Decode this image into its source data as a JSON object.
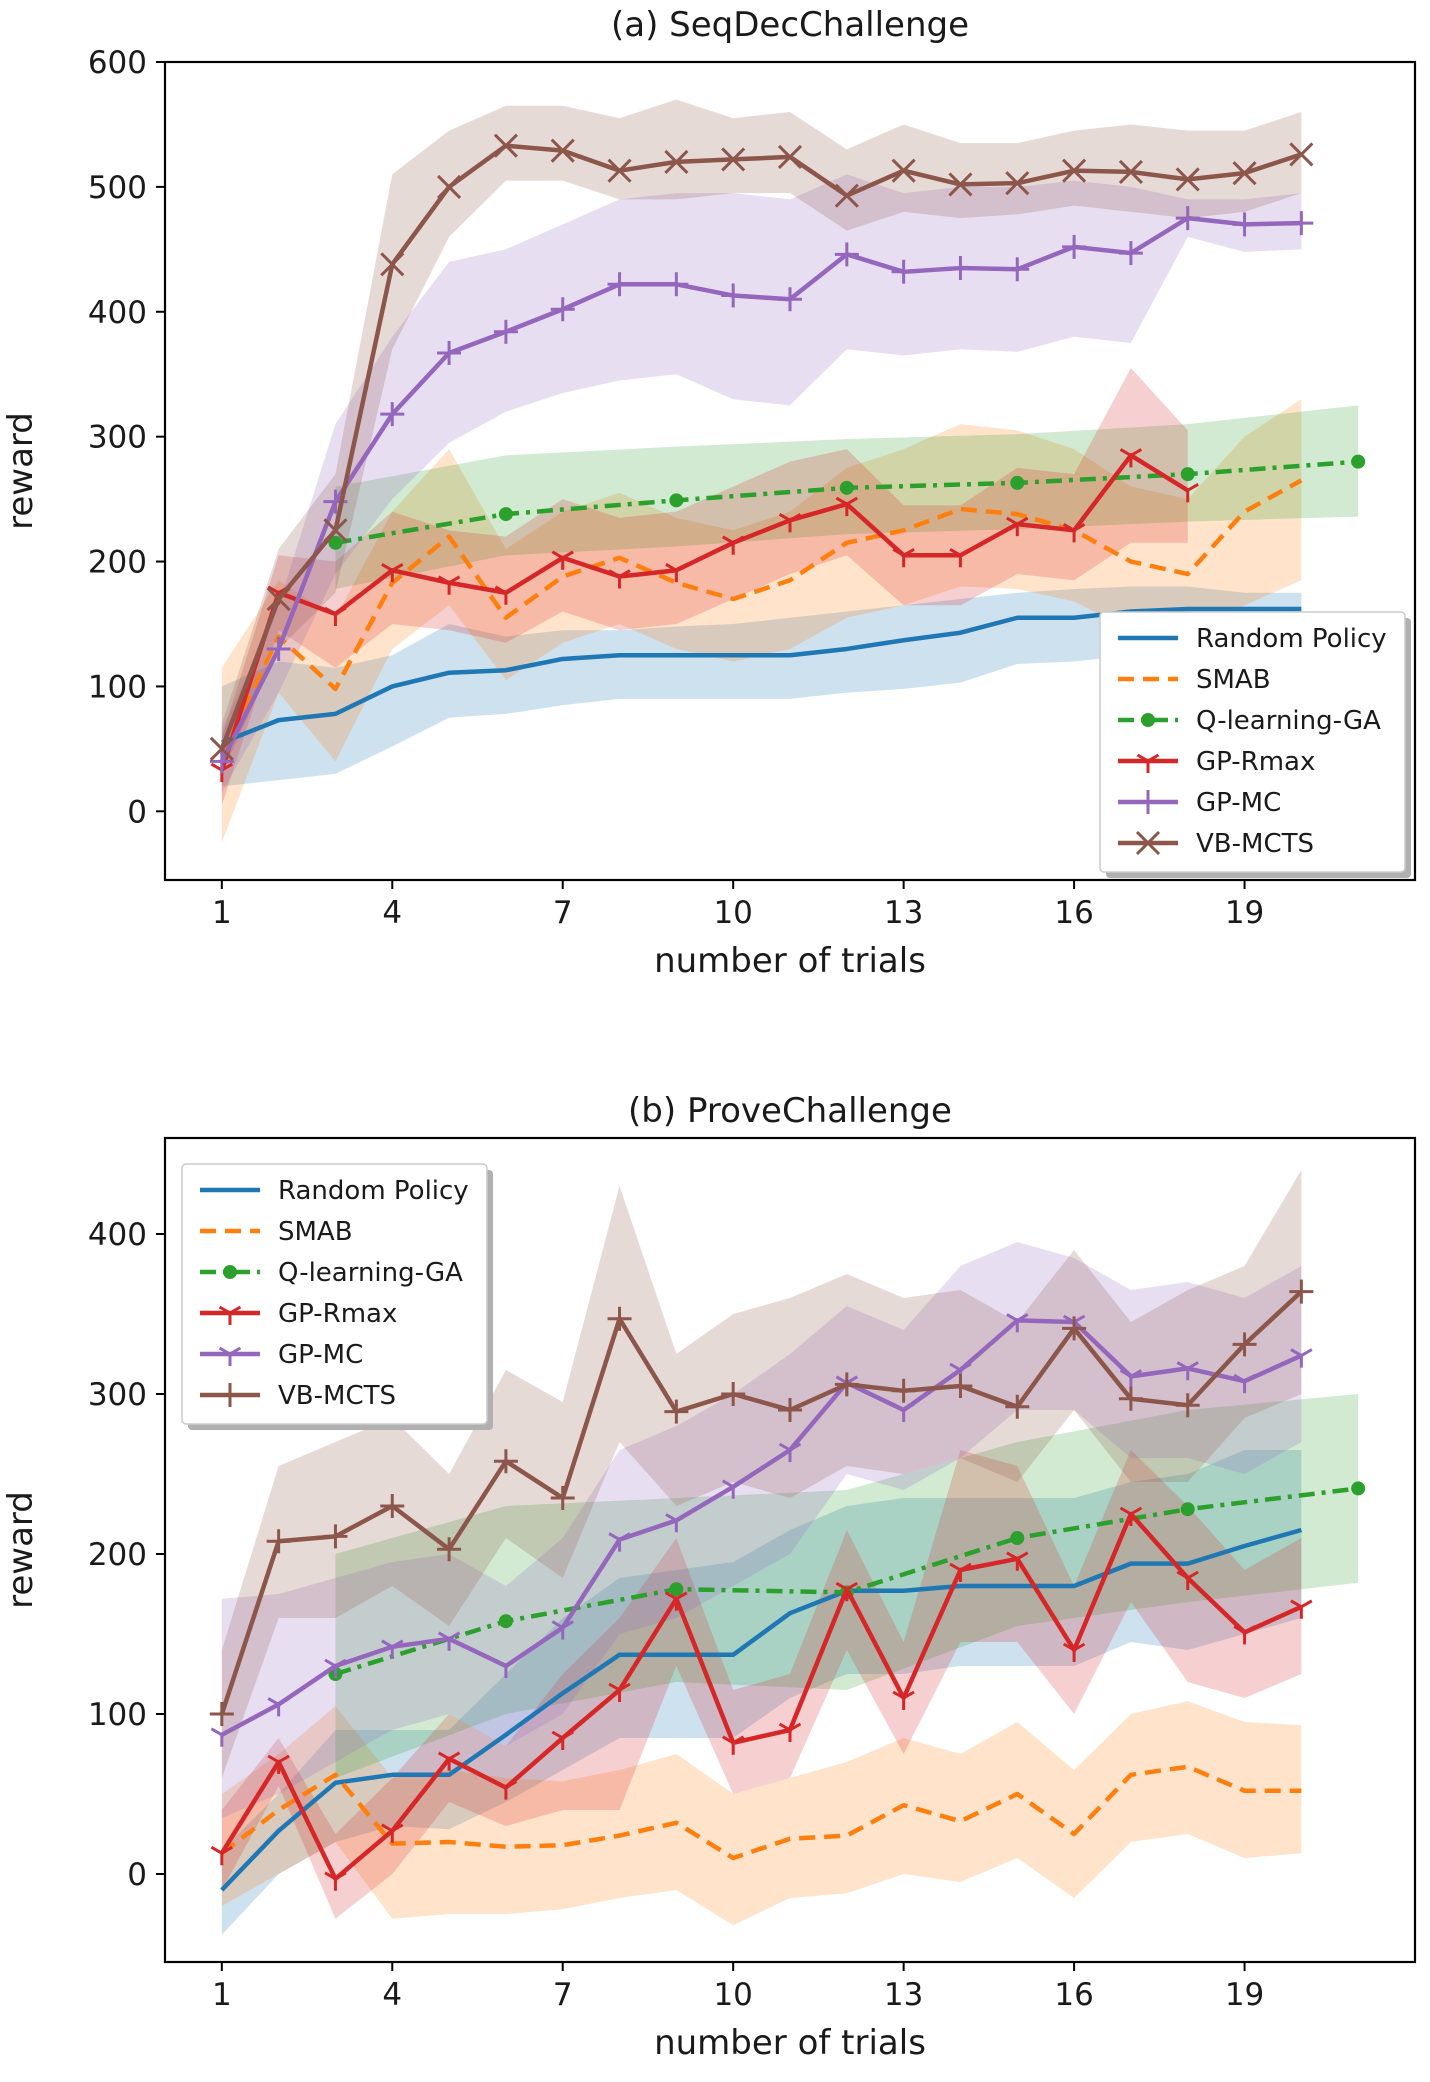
{
  "chart_data": [
    {
      "type": "line",
      "title": "(a) SeqDecChallenge",
      "xlabel": "number of trials",
      "ylabel": "reward",
      "xlim": [
        0,
        22
      ],
      "ylim": [
        -55,
        600
      ],
      "xticks": [
        1,
        4,
        7,
        10,
        13,
        16,
        19
      ],
      "yticks": [
        0,
        100,
        200,
        300,
        400,
        500,
        600
      ],
      "grid": false,
      "legend": "bottom-right",
      "series": [
        {
          "name": "Random Policy",
          "color": "#1f77b4",
          "dash": "solid",
          "marker": "none",
          "x": [
            1,
            2,
            3,
            4,
            5,
            6,
            7,
            8,
            9,
            10,
            11,
            12,
            13,
            14,
            15,
            16,
            17,
            18,
            19,
            20
          ],
          "y": [
            55,
            73,
            78,
            100,
            111,
            113,
            122,
            125,
            125,
            125,
            125,
            130,
            137,
            143,
            155,
            155,
            160,
            162,
            162,
            162
          ],
          "lower": [
            20,
            25,
            30,
            52,
            75,
            78,
            85,
            90,
            90,
            90,
            90,
            95,
            98,
            103,
            118,
            120,
            125,
            128,
            130,
            130
          ],
          "upper": [
            100,
            120,
            115,
            125,
            150,
            140,
            145,
            145,
            148,
            150,
            155,
            160,
            165,
            170,
            175,
            178,
            180,
            180,
            175,
            175
          ]
        },
        {
          "name": "SMAB",
          "color": "#ff7f0e",
          "dash": "dashed",
          "marker": "none",
          "x": [
            1,
            2,
            3,
            4,
            5,
            6,
            7,
            8,
            9,
            10,
            11,
            12,
            13,
            14,
            15,
            16,
            17,
            18,
            19,
            20
          ],
          "y": [
            45,
            140,
            98,
            183,
            220,
            155,
            188,
            203,
            183,
            170,
            185,
            215,
            225,
            242,
            238,
            225,
            200,
            190,
            240,
            265
          ],
          "lower": [
            -25,
            95,
            40,
            130,
            165,
            105,
            135,
            150,
            130,
            120,
            130,
            155,
            165,
            180,
            178,
            168,
            145,
            140,
            165,
            185
          ],
          "upper": [
            115,
            185,
            155,
            240,
            290,
            210,
            240,
            255,
            235,
            225,
            240,
            275,
            290,
            310,
            305,
            290,
            260,
            250,
            300,
            330
          ]
        },
        {
          "name": "Q-learning-GA",
          "color": "#2ca02c",
          "dash": "dashdot",
          "marker": "dot",
          "x": [
            3,
            6,
            9,
            12,
            15,
            18,
            21
          ],
          "y": [
            215,
            238,
            249,
            259,
            263,
            270,
            280
          ],
          "lower": [
            178,
            205,
            212,
            222,
            226,
            232,
            236
          ],
          "upper": [
            260,
            285,
            292,
            298,
            302,
            310,
            325
          ]
        },
        {
          "name": "GP-Rmax",
          "color": "#d62728",
          "dash": "solid",
          "marker": "tri_down",
          "x": [
            1,
            2,
            3,
            4,
            5,
            6,
            7,
            8,
            9,
            10,
            11,
            12,
            13,
            14,
            15,
            16,
            17,
            18
          ],
          "y": [
            33,
            175,
            158,
            193,
            183,
            175,
            203,
            188,
            193,
            215,
            233,
            246,
            205,
            205,
            230,
            225,
            285,
            257
          ],
          "lower": [
            5,
            145,
            115,
            150,
            145,
            135,
            160,
            145,
            150,
            170,
            190,
            205,
            165,
            165,
            190,
            185,
            215,
            215
          ],
          "upper": [
            60,
            205,
            200,
            240,
            225,
            220,
            250,
            235,
            240,
            260,
            280,
            290,
            245,
            245,
            275,
            270,
            355,
            305
          ]
        },
        {
          "name": "GP-MC",
          "color": "#9467bd",
          "dash": "solid",
          "marker": "plus",
          "x": [
            1,
            2,
            3,
            4,
            5,
            6,
            7,
            8,
            9,
            10,
            11,
            12,
            13,
            14,
            15,
            16,
            17,
            18,
            19,
            20
          ],
          "y": [
            40,
            130,
            248,
            318,
            367,
            384,
            402,
            422,
            422,
            413,
            410,
            446,
            432,
            435,
            434,
            452,
            447,
            475,
            470,
            471
          ],
          "lower": [
            15,
            95,
            190,
            250,
            295,
            320,
            335,
            345,
            350,
            330,
            325,
            370,
            365,
            370,
            368,
            380,
            375,
            460,
            448,
            450
          ],
          "upper": [
            65,
            165,
            310,
            380,
            440,
            450,
            470,
            490,
            495,
            495,
            490,
            510,
            495,
            500,
            500,
            505,
            500,
            490,
            490,
            495
          ]
        },
        {
          "name": "VB-MCTS",
          "color": "#8c564b",
          "dash": "solid",
          "marker": "x",
          "x": [
            1,
            2,
            3,
            4,
            5,
            6,
            7,
            8,
            9,
            10,
            11,
            12,
            13,
            14,
            15,
            16,
            17,
            18,
            19,
            20
          ],
          "y": [
            50,
            170,
            225,
            438,
            500,
            533,
            529,
            513,
            520,
            522,
            524,
            493,
            513,
            502,
            503,
            513,
            512,
            506,
            511,
            526
          ],
          "lower": [
            30,
            130,
            175,
            370,
            460,
            505,
            505,
            490,
            490,
            495,
            495,
            465,
            480,
            475,
            478,
            485,
            480,
            475,
            480,
            495
          ],
          "upper": [
            70,
            210,
            270,
            510,
            545,
            565,
            565,
            555,
            570,
            555,
            560,
            530,
            550,
            535,
            535,
            545,
            550,
            545,
            545,
            560
          ]
        }
      ]
    },
    {
      "type": "line",
      "title": "(b) ProveChallenge",
      "xlabel": "number of trials",
      "ylabel": "reward",
      "xlim": [
        0,
        22
      ],
      "ylim": [
        -55,
        460
      ],
      "xticks": [
        1,
        4,
        7,
        10,
        13,
        16,
        19
      ],
      "yticks": [
        0,
        100,
        200,
        300,
        400
      ],
      "grid": false,
      "legend": "top-left",
      "series": [
        {
          "name": "Random Policy",
          "color": "#1f77b4",
          "dash": "solid",
          "marker": "none",
          "x": [
            1,
            2,
            3,
            4,
            5,
            6,
            7,
            8,
            9,
            10,
            11,
            12,
            13,
            14,
            15,
            16,
            17,
            18,
            19,
            20
          ],
          "y": [
            -10,
            27,
            57,
            62,
            62,
            87,
            113,
            137,
            137,
            137,
            163,
            177,
            177,
            180,
            180,
            180,
            194,
            194,
            205,
            215
          ],
          "lower": [
            -38,
            0,
            20,
            30,
            28,
            45,
            65,
            85,
            85,
            85,
            110,
            125,
            125,
            130,
            130,
            130,
            145,
            140,
            150,
            160
          ],
          "upper": [
            15,
            50,
            90,
            90,
            90,
            125,
            160,
            185,
            190,
            195,
            215,
            230,
            235,
            235,
            235,
            235,
            245,
            250,
            265,
            265
          ]
        },
        {
          "name": "SMAB",
          "color": "#ff7f0e",
          "dash": "dashed",
          "marker": "none",
          "x": [
            1,
            2,
            3,
            4,
            5,
            6,
            7,
            8,
            9,
            10,
            11,
            12,
            13,
            14,
            15,
            16,
            17,
            18,
            19,
            20
          ],
          "y": [
            13,
            40,
            62,
            19,
            20,
            17,
            18,
            24,
            32,
            10,
            22,
            24,
            43,
            33,
            50,
            25,
            62,
            67,
            52,
            52
          ],
          "lower": [
            -20,
            0,
            20,
            -28,
            -25,
            -25,
            -22,
            -15,
            -10,
            -32,
            -15,
            -12,
            0,
            -5,
            10,
            -15,
            20,
            25,
            10,
            13
          ],
          "upper": [
            50,
            75,
            105,
            60,
            65,
            60,
            58,
            65,
            75,
            50,
            60,
            70,
            85,
            75,
            95,
            65,
            100,
            108,
            95,
            93
          ]
        },
        {
          "name": "Q-learning-GA",
          "color": "#2ca02c",
          "dash": "dashdot",
          "marker": "dot",
          "x": [
            3,
            6,
            9,
            12,
            15,
            18,
            21
          ],
          "y": [
            125,
            158,
            178,
            176,
            210,
            228,
            241
          ],
          "lower": [
            60,
            100,
            120,
            115,
            155,
            170,
            182
          ],
          "upper": [
            200,
            230,
            235,
            240,
            270,
            290,
            300
          ]
        },
        {
          "name": "GP-Rmax",
          "color": "#d62728",
          "dash": "solid",
          "marker": "tri_down",
          "x": [
            1,
            2,
            3,
            4,
            5,
            6,
            7,
            8,
            9,
            10,
            11,
            12,
            13,
            14,
            15,
            16,
            17,
            18,
            19,
            20
          ],
          "y": [
            13,
            70,
            -3,
            27,
            72,
            54,
            85,
            115,
            172,
            82,
            90,
            178,
            110,
            190,
            197,
            140,
            225,
            185,
            151,
            167
          ],
          "lower": [
            -10,
            55,
            -28,
            0,
            45,
            30,
            40,
            40,
            130,
            50,
            60,
            140,
            75,
            145,
            145,
            100,
            170,
            120,
            110,
            125
          ],
          "upper": [
            40,
            85,
            25,
            60,
            100,
            80,
            125,
            160,
            210,
            115,
            125,
            215,
            145,
            265,
            255,
            180,
            265,
            230,
            190,
            210
          ]
        },
        {
          "name": "GP-MC",
          "color": "#9467bd",
          "dash": "solid",
          "marker": "tri_down",
          "x": [
            1,
            2,
            3,
            4,
            5,
            6,
            7,
            8,
            9,
            10,
            11,
            12,
            13,
            14,
            15,
            16,
            17,
            18,
            19,
            20
          ],
          "y": [
            87,
            106,
            130,
            142,
            147,
            130,
            154,
            209,
            221,
            242,
            265,
            307,
            290,
            315,
            346,
            345,
            311,
            316,
            308,
            324
          ],
          "lower": [
            35,
            50,
            70,
            90,
            100,
            80,
            100,
            150,
            160,
            180,
            200,
            250,
            240,
            260,
            290,
            290,
            260,
            260,
            250,
            270
          ],
          "upper": [
            172,
            175,
            185,
            195,
            200,
            180,
            210,
            265,
            280,
            300,
            325,
            355,
            340,
            380,
            395,
            385,
            365,
            370,
            360,
            380
          ]
        },
        {
          "name": "VB-MCTS",
          "color": "#8c564b",
          "dash": "solid",
          "marker": "plus",
          "x": [
            1,
            2,
            3,
            4,
            5,
            6,
            7,
            8,
            9,
            10,
            11,
            12,
            13,
            14,
            15,
            16,
            17,
            18,
            19,
            20
          ],
          "y": [
            100,
            208,
            211,
            230,
            203,
            258,
            235,
            347,
            289,
            300,
            290,
            306,
            302,
            305,
            292,
            341,
            297,
            293,
            331,
            364
          ],
          "lower": [
            60,
            160,
            160,
            180,
            155,
            210,
            185,
            270,
            230,
            245,
            235,
            255,
            250,
            260,
            245,
            290,
            245,
            245,
            285,
            300
          ],
          "upper": [
            140,
            255,
            270,
            285,
            250,
            315,
            295,
            430,
            325,
            350,
            360,
            375,
            360,
            365,
            345,
            390,
            345,
            365,
            380,
            440
          ]
        }
      ]
    }
  ]
}
